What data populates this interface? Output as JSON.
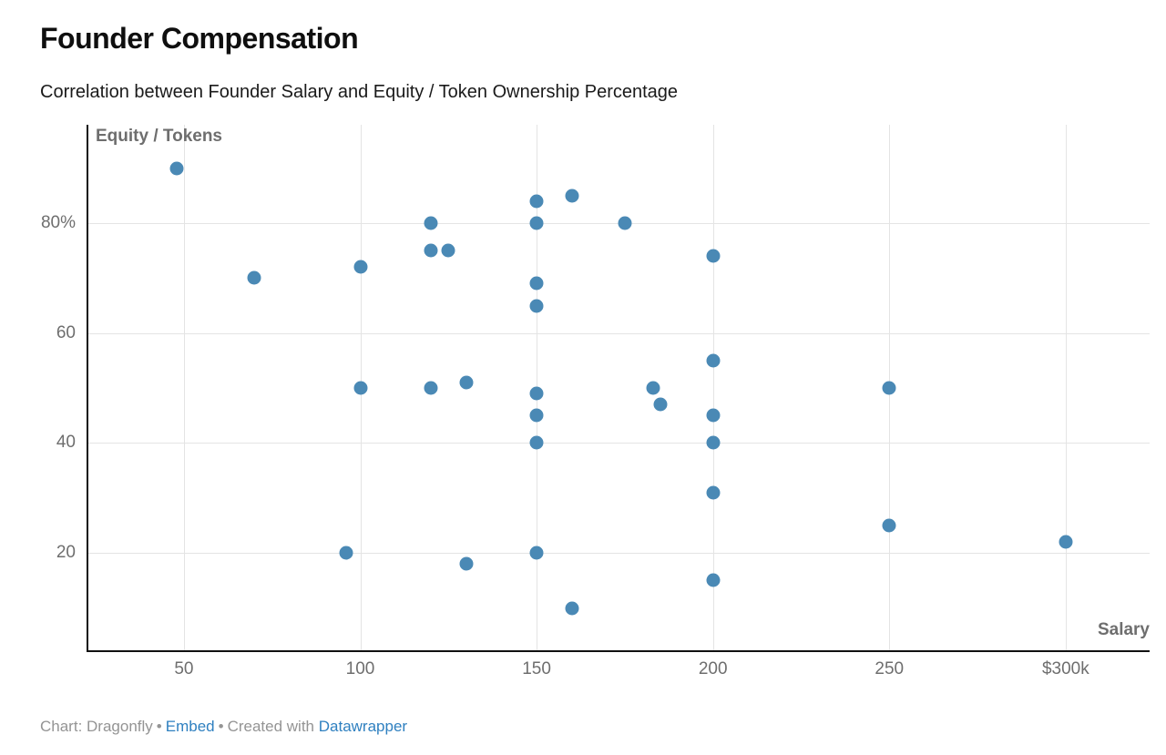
{
  "header": {
    "title": "Founder Compensation",
    "subtitle": "Correlation between Founder Salary and Equity / Token Ownership Percentage"
  },
  "chart_data": {
    "type": "scatter",
    "title": "Founder Compensation",
    "subtitle": "Correlation between Founder Salary and Equity / Token Ownership Percentage",
    "grid": true,
    "legend": "none",
    "point_color": "#4a89b5",
    "x_axis": {
      "label": "Salary",
      "unit_hint": "thousand dollars",
      "range": [
        22.9,
        323.8
      ],
      "ticks": [
        50,
        100,
        150,
        200,
        250,
        300
      ],
      "tick_labels": [
        "50",
        "100",
        "150",
        "200",
        "250",
        "$300k"
      ]
    },
    "y_axis": {
      "label": "Equity / Tokens",
      "unit_hint": "percent",
      "range": [
        2.3,
        97.9
      ],
      "ticks": [
        20,
        40,
        60,
        80
      ],
      "tick_labels": [
        "20",
        "40",
        "60",
        "80%"
      ]
    },
    "points": [
      [
        48,
        90
      ],
      [
        70,
        70
      ],
      [
        96,
        20
      ],
      [
        100,
        50
      ],
      [
        100,
        72
      ],
      [
        120,
        50
      ],
      [
        120,
        75
      ],
      [
        120,
        80
      ],
      [
        125,
        75
      ],
      [
        130,
        18
      ],
      [
        130,
        51
      ],
      [
        150,
        20
      ],
      [
        150,
        40
      ],
      [
        150,
        45
      ],
      [
        150,
        49
      ],
      [
        150,
        65
      ],
      [
        150,
        69
      ],
      [
        150,
        80
      ],
      [
        150,
        84
      ],
      [
        160,
        10
      ],
      [
        160,
        85
      ],
      [
        175,
        80
      ],
      [
        183,
        50
      ],
      [
        185,
        47
      ],
      [
        200,
        15
      ],
      [
        200,
        31
      ],
      [
        200,
        40
      ],
      [
        200,
        45
      ],
      [
        200,
        55
      ],
      [
        200,
        74
      ],
      [
        250,
        25
      ],
      [
        250,
        50
      ],
      [
        300,
        22
      ]
    ]
  },
  "footer": {
    "credit": "Chart: Dragonfly",
    "separator": "•",
    "embed_label": "Embed",
    "created_with": "Created with",
    "tool_label": "Datawrapper"
  },
  "colors": {
    "point": "#4a89b5",
    "grid": "#e4e4e4",
    "axis": "#111111",
    "tick_text": "#6e6e6e",
    "footer_text": "#949494",
    "link": "#2f80c0"
  }
}
